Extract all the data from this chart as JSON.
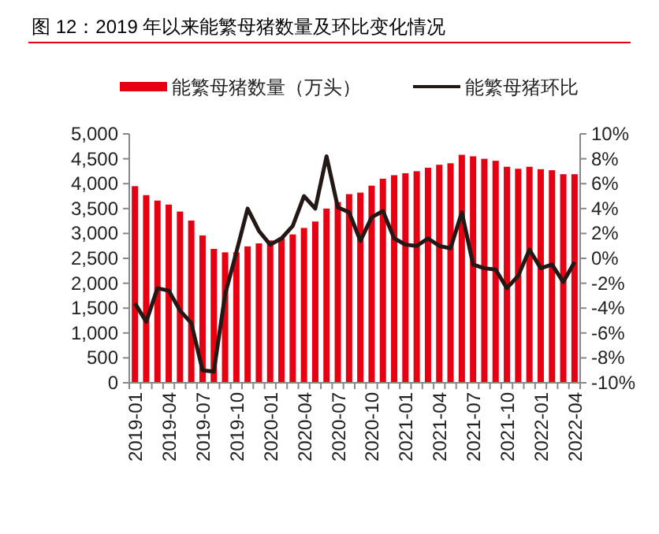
{
  "chart_data": {
    "type": "bar",
    "title": "图 12：2019 年以来能繁母猪数量及环比变化情况",
    "categories": [
      "2019-01",
      null,
      null,
      "2019-04",
      null,
      null,
      "2019-07",
      null,
      null,
      "2019-10",
      null,
      null,
      "2020-01",
      null,
      null,
      "2020-04",
      null,
      null,
      "2020-07",
      null,
      null,
      "2020-10",
      null,
      null,
      "2021-01",
      null,
      null,
      "2021-04",
      null,
      null,
      "2021-07",
      null,
      null,
      "2021-10",
      null,
      null,
      "2022-01",
      null,
      null,
      "2022-04"
    ],
    "series": [
      {
        "name": "能繁母猪数量（万头）",
        "color": "#e60012",
        "values": [
          3950,
          3770,
          3660,
          3580,
          3440,
          3260,
          2960,
          2690,
          2620,
          2620,
          2740,
          2800,
          2860,
          2920,
          2980,
          3110,
          3240,
          3500,
          3630,
          3790,
          3820,
          3960,
          4100,
          4170,
          4210,
          4250,
          4320,
          4380,
          4410,
          4580,
          4550,
          4500,
          4460,
          4340,
          4300,
          4340,
          4290,
          4270,
          4190,
          4190
        ]
      },
      {
        "name": "能繁母猪环比",
        "type": "line",
        "axis": "y2",
        "color": "#231815",
        "values": [
          -3.6,
          -5.1,
          -2.4,
          -2.6,
          -4.2,
          -5.2,
          -9.0,
          -9.1,
          -2.9,
          0.5,
          4.0,
          2.2,
          1.1,
          1.6,
          2.6,
          5.0,
          4.0,
          8.2,
          4.1,
          3.7,
          1.4,
          3.3,
          3.8,
          1.6,
          1.1,
          1.0,
          1.6,
          1.0,
          0.8,
          3.7,
          -0.5,
          -0.8,
          -0.9,
          -2.4,
          -1.4,
          0.7,
          -0.8,
          -0.5,
          -1.9,
          -0.3
        ]
      }
    ],
    "ylim": [
      0,
      5000
    ],
    "yticks": [
      {
        "value": 0,
        "label": "0"
      },
      {
        "value": 500,
        "label": "500"
      },
      {
        "value": 1000,
        "label": "1,000"
      },
      {
        "value": 1500,
        "label": "1,500"
      },
      {
        "value": 2000,
        "label": "2,000"
      },
      {
        "value": 2500,
        "label": "2,500"
      },
      {
        "value": 3000,
        "label": "3,000"
      },
      {
        "value": 3500,
        "label": "3,500"
      },
      {
        "value": 4000,
        "label": "4,000"
      },
      {
        "value": 4500,
        "label": "4,500"
      },
      {
        "value": 5000,
        "label": "5,000"
      }
    ],
    "y2lim": [
      -10,
      10
    ],
    "y2ticks": [
      {
        "value": -10,
        "label": "-10%"
      },
      {
        "value": -8,
        "label": "-8%"
      },
      {
        "value": -6,
        "label": "-6%"
      },
      {
        "value": -4,
        "label": "-4%"
      },
      {
        "value": -2,
        "label": "-2%"
      },
      {
        "value": 0,
        "label": "0%"
      },
      {
        "value": 2,
        "label": "2%"
      },
      {
        "value": 4,
        "label": "4%"
      },
      {
        "value": 6,
        "label": "6%"
      },
      {
        "value": 8,
        "label": "8%"
      },
      {
        "value": 10,
        "label": "10%"
      }
    ],
    "legend": "top",
    "grid": false
  }
}
